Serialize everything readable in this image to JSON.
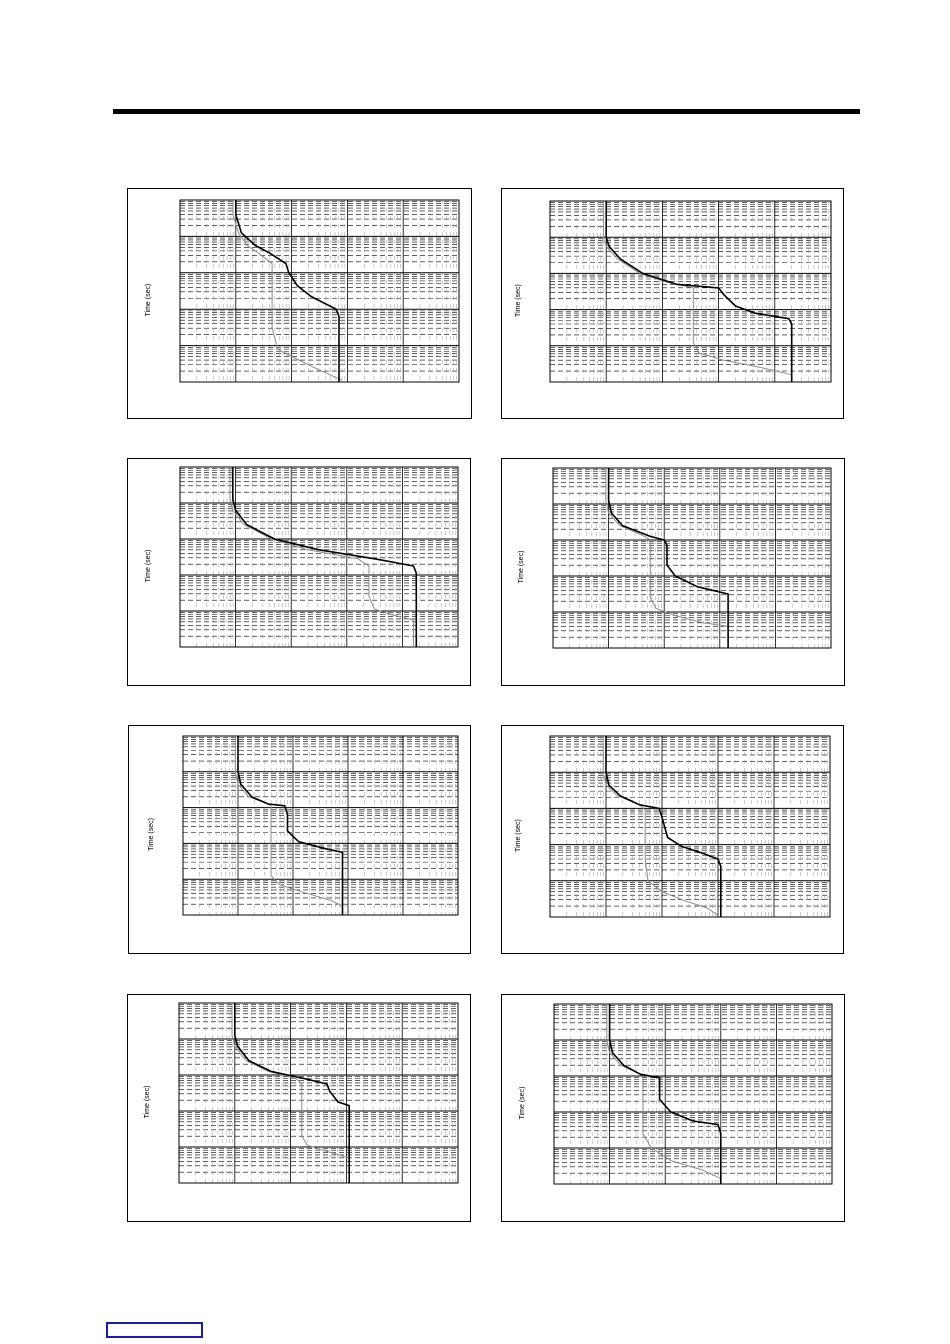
{
  "header": {
    "rule": true
  },
  "footer": {
    "box_color": "#1a1ab4"
  },
  "chart_data": [
    {
      "type": "line",
      "ylabel": "Time (sec)",
      "yscale": "log",
      "xscale": "log",
      "grid": true,
      "series": [
        {
          "color": "#000000",
          "points": [
            [
              0.2,
              0
            ],
            [
              0.2,
              0.08
            ],
            [
              0.21,
              0.13
            ],
            [
              0.22,
              0.18
            ],
            [
              0.27,
              0.25
            ],
            [
              0.32,
              0.29
            ],
            [
              0.38,
              0.35
            ],
            [
              0.39,
              0.4
            ],
            [
              0.42,
              0.47
            ],
            [
              0.47,
              0.53
            ],
            [
              0.56,
              0.6
            ],
            [
              0.57,
              0.64
            ],
            [
              0.57,
              1
            ]
          ]
        },
        {
          "color": "#8c8c8c",
          "points": [
            [
              0.19,
              0
            ],
            [
              0.19,
              0.08
            ],
            [
              0.2,
              0.13
            ],
            [
              0.21,
              0.18
            ],
            [
              0.24,
              0.25
            ],
            [
              0.28,
              0.29
            ],
            [
              0.33,
              0.35
            ],
            [
              0.33,
              0.7
            ],
            [
              0.35,
              0.82
            ],
            [
              0.4,
              0.86
            ],
            [
              0.48,
              0.92
            ],
            [
              0.58,
              0.99
            ]
          ]
        }
      ]
    },
    {
      "type": "line",
      "ylabel": "Time (sec)",
      "yscale": "log",
      "xscale": "log",
      "grid": true,
      "series": [
        {
          "color": "#000000",
          "points": [
            [
              0.2,
              0
            ],
            [
              0.2,
              0.2
            ],
            [
              0.21,
              0.25
            ],
            [
              0.25,
              0.32
            ],
            [
              0.33,
              0.4
            ],
            [
              0.45,
              0.46
            ],
            [
              0.6,
              0.48
            ],
            [
              0.62,
              0.52
            ],
            [
              0.66,
              0.58
            ],
            [
              0.73,
              0.62
            ],
            [
              0.85,
              0.65
            ],
            [
              0.86,
              0.68
            ],
            [
              0.86,
              1
            ]
          ]
        },
        {
          "color": "#8c8c8c",
          "points": [
            [
              0.19,
              0
            ],
            [
              0.19,
              0.2
            ],
            [
              0.2,
              0.25
            ],
            [
              0.24,
              0.32
            ],
            [
              0.32,
              0.4
            ],
            [
              0.42,
              0.45
            ],
            [
              0.51,
              0.48
            ],
            [
              0.51,
              0.78
            ],
            [
              0.53,
              0.84
            ],
            [
              0.62,
              0.88
            ],
            [
              0.75,
              0.92
            ],
            [
              0.86,
              0.96
            ]
          ]
        }
      ]
    },
    {
      "type": "line",
      "ylabel": "Time (sec)",
      "yscale": "log",
      "xscale": "log",
      "grid": true,
      "series": [
        {
          "color": "#000000",
          "points": [
            [
              0.19,
              0
            ],
            [
              0.19,
              0.18
            ],
            [
              0.2,
              0.24
            ],
            [
              0.24,
              0.32
            ],
            [
              0.34,
              0.4
            ],
            [
              0.5,
              0.46
            ],
            [
              0.7,
              0.51
            ],
            [
              0.84,
              0.55
            ],
            [
              0.85,
              0.59
            ],
            [
              0.85,
              1
            ]
          ]
        },
        {
          "color": "#8c8c8c",
          "points": [
            [
              0.18,
              0
            ],
            [
              0.18,
              0.18
            ],
            [
              0.19,
              0.24
            ],
            [
              0.23,
              0.32
            ],
            [
              0.33,
              0.4
            ],
            [
              0.46,
              0.46
            ],
            [
              0.64,
              0.51
            ],
            [
              0.68,
              0.55
            ],
            [
              0.68,
              0.72
            ],
            [
              0.7,
              0.79
            ],
            [
              0.76,
              0.82
            ],
            [
              0.84,
              0.85
            ],
            [
              0.84,
              1
            ]
          ]
        }
      ]
    },
    {
      "type": "line",
      "ylabel": "Time (sec)",
      "yscale": "log",
      "xscale": "log",
      "grid": true,
      "series": [
        {
          "color": "#000000",
          "points": [
            [
              0.2,
              0
            ],
            [
              0.2,
              0.18
            ],
            [
              0.21,
              0.25
            ],
            [
              0.25,
              0.32
            ],
            [
              0.35,
              0.38
            ],
            [
              0.4,
              0.4
            ],
            [
              0.41,
              0.43
            ],
            [
              0.41,
              0.54
            ],
            [
              0.44,
              0.6
            ],
            [
              0.52,
              0.66
            ],
            [
              0.63,
              0.7
            ],
            [
              0.63,
              1
            ]
          ]
        },
        {
          "color": "#8c8c8c",
          "points": [
            [
              0.19,
              0
            ],
            [
              0.19,
              0.18
            ],
            [
              0.2,
              0.25
            ],
            [
              0.24,
              0.32
            ],
            [
              0.33,
              0.38
            ],
            [
              0.35,
              0.4
            ],
            [
              0.35,
              0.72
            ],
            [
              0.37,
              0.78
            ],
            [
              0.44,
              0.82
            ],
            [
              0.54,
              0.86
            ],
            [
              0.63,
              0.88
            ]
          ]
        }
      ]
    },
    {
      "type": "line",
      "ylabel": "Time (sec)",
      "yscale": "log",
      "xscale": "log",
      "grid": true,
      "series": [
        {
          "color": "#000000",
          "points": [
            [
              0.2,
              0
            ],
            [
              0.2,
              0.2
            ],
            [
              0.21,
              0.27
            ],
            [
              0.25,
              0.34
            ],
            [
              0.31,
              0.38
            ],
            [
              0.37,
              0.39
            ],
            [
              0.38,
              0.44
            ],
            [
              0.38,
              0.53
            ],
            [
              0.42,
              0.59
            ],
            [
              0.52,
              0.63
            ],
            [
              0.58,
              0.65
            ],
            [
              0.58,
              0.67
            ],
            [
              0.58,
              1
            ]
          ]
        },
        {
          "color": "#8c8c8c",
          "points": [
            [
              0.19,
              0
            ],
            [
              0.19,
              0.2
            ],
            [
              0.2,
              0.27
            ],
            [
              0.24,
              0.34
            ],
            [
              0.31,
              0.38
            ],
            [
              0.32,
              0.39
            ],
            [
              0.32,
              0.78
            ],
            [
              0.35,
              0.83
            ],
            [
              0.43,
              0.87
            ],
            [
              0.54,
              0.92
            ],
            [
              0.58,
              0.95
            ]
          ]
        }
      ]
    },
    {
      "type": "line",
      "ylabel": "Time (sec)",
      "yscale": "log",
      "xscale": "log",
      "grid": true,
      "series": [
        {
          "color": "#000000",
          "points": [
            [
              0.2,
              0
            ],
            [
              0.2,
              0.2
            ],
            [
              0.21,
              0.27
            ],
            [
              0.25,
              0.33
            ],
            [
              0.32,
              0.38
            ],
            [
              0.39,
              0.4
            ],
            [
              0.4,
              0.45
            ],
            [
              0.42,
              0.56
            ],
            [
              0.47,
              0.61
            ],
            [
              0.55,
              0.65
            ],
            [
              0.6,
              0.68
            ],
            [
              0.61,
              0.72
            ],
            [
              0.61,
              1
            ]
          ]
        },
        {
          "color": "#8c8c8c",
          "points": [
            [
              0.19,
              0
            ],
            [
              0.19,
              0.2
            ],
            [
              0.2,
              0.27
            ],
            [
              0.24,
              0.33
            ],
            [
              0.32,
              0.38
            ],
            [
              0.34,
              0.41
            ],
            [
              0.34,
              0.68
            ],
            [
              0.35,
              0.8
            ],
            [
              0.4,
              0.86
            ],
            [
              0.48,
              0.91
            ],
            [
              0.56,
              0.95
            ],
            [
              0.6,
              0.99
            ]
          ]
        }
      ]
    },
    {
      "type": "line",
      "ylabel": "Time (sec)",
      "yscale": "log",
      "xscale": "log",
      "grid": true,
      "series": [
        {
          "color": "#000000",
          "points": [
            [
              0.2,
              0
            ],
            [
              0.2,
              0.18
            ],
            [
              0.21,
              0.24
            ],
            [
              0.25,
              0.32
            ],
            [
              0.33,
              0.38
            ],
            [
              0.45,
              0.42
            ],
            [
              0.53,
              0.45
            ],
            [
              0.54,
              0.49
            ],
            [
              0.57,
              0.55
            ],
            [
              0.61,
              0.57
            ],
            [
              0.61,
              1
            ]
          ]
        },
        {
          "color": "#8c8c8c",
          "points": [
            [
              0.19,
              0
            ],
            [
              0.19,
              0.18
            ],
            [
              0.2,
              0.24
            ],
            [
              0.24,
              0.32
            ],
            [
              0.32,
              0.38
            ],
            [
              0.42,
              0.42
            ],
            [
              0.44,
              0.45
            ],
            [
              0.44,
              0.74
            ],
            [
              0.46,
              0.79
            ],
            [
              0.52,
              0.82
            ],
            [
              0.61,
              0.86
            ],
            [
              0.61,
              0.92
            ]
          ]
        }
      ]
    },
    {
      "type": "line",
      "ylabel": "Time (sec)",
      "yscale": "log",
      "xscale": "log",
      "grid": true,
      "series": [
        {
          "color": "#000000",
          "points": [
            [
              0.2,
              0
            ],
            [
              0.2,
              0.2
            ],
            [
              0.21,
              0.27
            ],
            [
              0.25,
              0.34
            ],
            [
              0.31,
              0.39
            ],
            [
              0.38,
              0.41
            ],
            [
              0.38,
              0.53
            ],
            [
              0.42,
              0.6
            ],
            [
              0.5,
              0.65
            ],
            [
              0.59,
              0.67
            ],
            [
              0.6,
              0.72
            ],
            [
              0.6,
              1
            ]
          ]
        },
        {
          "color": "#8c8c8c",
          "points": [
            [
              0.19,
              0
            ],
            [
              0.19,
              0.2
            ],
            [
              0.2,
              0.27
            ],
            [
              0.24,
              0.34
            ],
            [
              0.31,
              0.39
            ],
            [
              0.32,
              0.4
            ],
            [
              0.32,
              0.72
            ],
            [
              0.35,
              0.8
            ],
            [
              0.42,
              0.87
            ],
            [
              0.53,
              0.92
            ],
            [
              0.6,
              0.97
            ]
          ]
        }
      ]
    }
  ]
}
